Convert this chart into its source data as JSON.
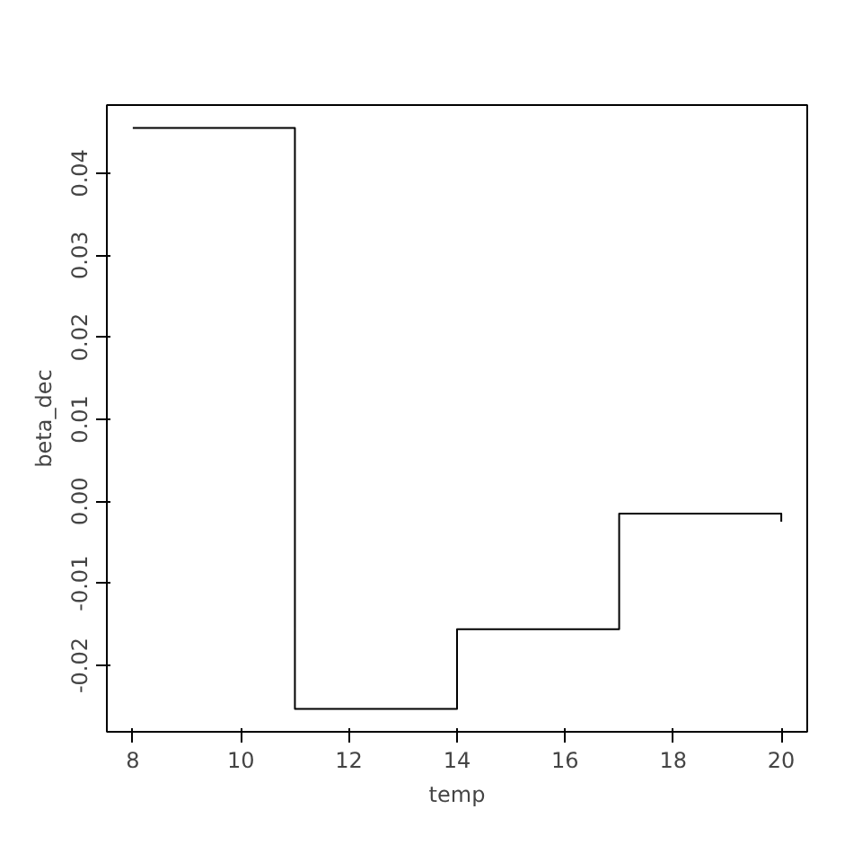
{
  "chart_data": {
    "type": "step",
    "xlabel": "temp",
    "ylabel": "beta_dec",
    "x": [
      8,
      11,
      14,
      17,
      20
    ],
    "series": [
      {
        "color": "#000000",
        "values": [
          0.0455,
          -0.0253,
          -0.0156,
          -0.0015,
          -0.0025
        ]
      }
    ],
    "xlim": [
      7.52,
      20.48
    ],
    "ylim": [
      -0.0281,
      0.0483
    ],
    "xticks": [
      8,
      10,
      12,
      14,
      16,
      18,
      20
    ],
    "yticks": [
      {
        "value": -0.02,
        "label": "-0.02"
      },
      {
        "value": -0.01,
        "label": "-0.01"
      },
      {
        "value": 0,
        "label": "0.00"
      },
      0.01,
      0.02,
      0.03,
      0.04
    ],
    "line_style": "solid"
  }
}
